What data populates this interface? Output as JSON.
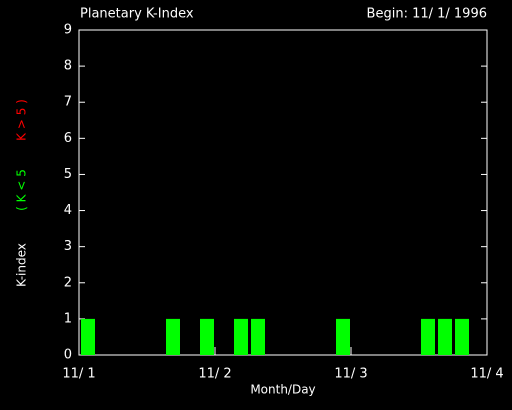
{
  "chart_data": {
    "type": "histogram",
    "title": "Planetary K-Index",
    "subtitle": "Begin: 11/ 1/ 1996",
    "x_label": "Month/Day",
    "y_label": [
      {
        "text": "K-index",
        "color": "#ffffff"
      },
      {
        "text": "( K < 5",
        "color": "#00ff00"
      },
      {
        "text": "K > 5 )",
        "color": "#ff0000"
      }
    ],
    "bins": [
      0,
      0.125,
      0.25,
      0.375,
      0.5,
      0.625,
      0.75,
      0.875,
      1,
      1.125,
      1.25,
      1.375,
      1.5,
      1.625,
      1.75,
      1.875,
      2,
      2.125,
      2.25,
      2.375,
      2.5,
      2.625,
      2.75,
      2.875,
      3
    ],
    "values": [
      1,
      0,
      0,
      0,
      0,
      1,
      0,
      1,
      0,
      1,
      1,
      0,
      0,
      0,
      0,
      1,
      0,
      0,
      0,
      0,
      1,
      1,
      1,
      0
    ],
    "color": "#00ff00",
    "xlim": [
      0,
      3
    ],
    "xticks": [
      {
        "value": 0,
        "label": "11/ 1"
      },
      {
        "value": 1,
        "label": "11/ 2"
      },
      {
        "value": 2,
        "label": "11/ 3"
      },
      {
        "value": 3,
        "label": "11/ 4"
      }
    ],
    "ylim": [
      0,
      9
    ],
    "yticks": [
      0,
      1,
      2,
      3,
      4,
      5,
      6,
      7,
      8,
      9
    ]
  }
}
